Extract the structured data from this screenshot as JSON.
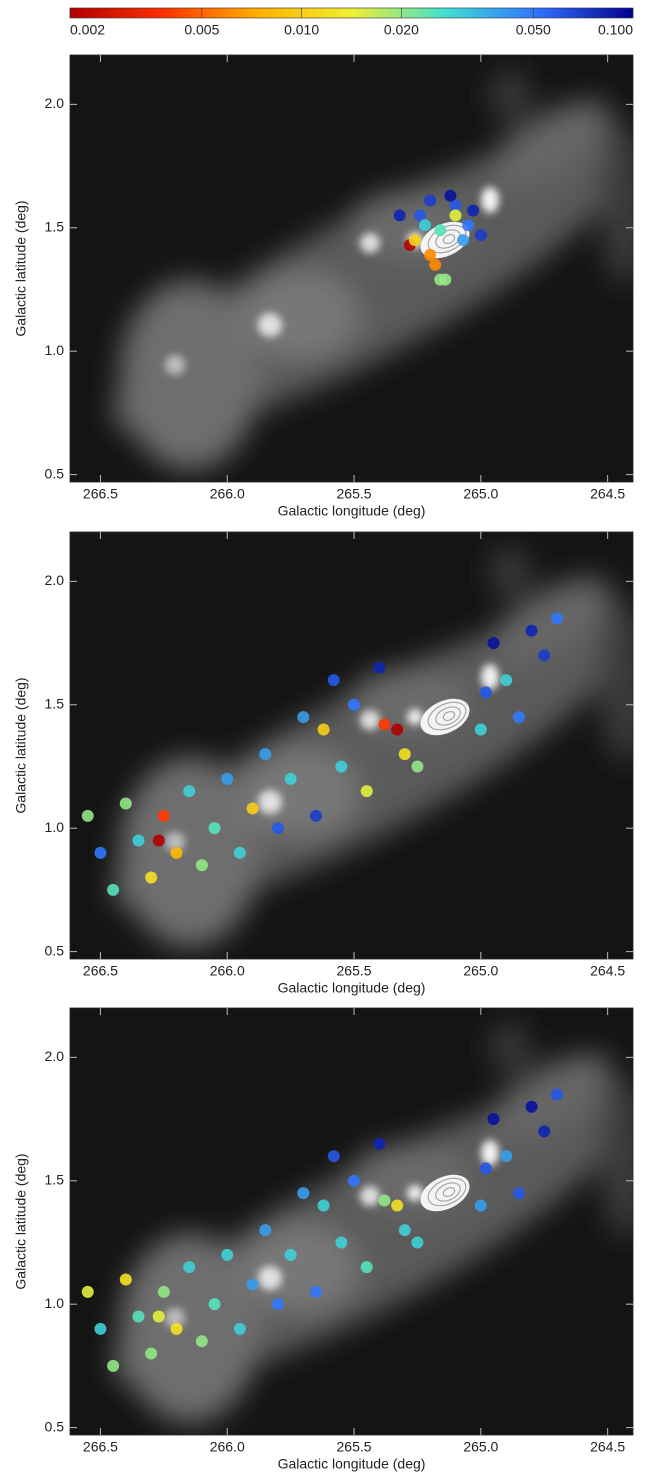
{
  "chart_data": [
    {
      "type": "colorbar",
      "log_scale": true,
      "xlim": [
        0.002,
        0.1
      ],
      "xticks": [
        0.002,
        0.005,
        {
          "value": 0.01,
          "label": "0.010"
        },
        {
          "value": 0.02,
          "label": "0.020"
        },
        {
          "value": 0.05,
          "label": "0.050"
        },
        {
          "value": 0.1,
          "label": "0.100"
        }
      ],
      "colormap": [
        "#b00000",
        "#ff3000",
        "#ffb000",
        "#f0f030",
        "#40e0d0",
        "#3070ff",
        "#00008c"
      ]
    },
    {
      "type": "scatter",
      "xlabel": "Galactic longitude (deg)",
      "ylabel": "Galactic latitude (deg)",
      "xlim": [
        266.62,
        264.4
      ],
      "ylim": [
        0.47,
        2.2
      ],
      "xticks": [
        266.5,
        {
          "value": 266.0,
          "label": "266.0"
        },
        265.5,
        {
          "value": 265.0,
          "label": "265.0"
        },
        264.5
      ],
      "yticks": [
        0.5,
        {
          "value": 1.0,
          "label": "1.0"
        },
        1.5,
        {
          "value": 2.0,
          "label": "2.0"
        }
      ],
      "series": [
        {
          "x": [
            265.32,
            265.2,
            265.1,
            265.05,
            265.0,
            265.16,
            265.1,
            265.28,
            265.26,
            265.2,
            265.18,
            265.16,
            265.14,
            265.24,
            265.03,
            265.07,
            265.22,
            265.12
          ],
          "y": [
            1.55,
            1.61,
            1.59,
            1.51,
            1.47,
            1.49,
            1.55,
            1.43,
            1.45,
            1.39,
            1.35,
            1.29,
            1.29,
            1.55,
            1.57,
            1.45,
            1.51,
            1.63
          ],
          "values": [
            0.08,
            0.07,
            0.06,
            0.05,
            0.07,
            0.025,
            0.015,
            0.002,
            0.01,
            0.006,
            0.006,
            0.02,
            0.02,
            0.06,
            0.08,
            0.04,
            0.03,
            0.09
          ]
        }
      ]
    },
    {
      "type": "scatter",
      "xlabel": "Galactic longitude (deg)",
      "ylabel": "Galactic latitude (deg)",
      "xlim": [
        266.62,
        264.4
      ],
      "ylim": [
        0.47,
        2.2
      ],
      "xticks": [
        266.5,
        {
          "value": 266.0,
          "label": "266.0"
        },
        265.5,
        {
          "value": 265.0,
          "label": "265.0"
        },
        264.5
      ],
      "yticks": [
        0.5,
        {
          "value": 1.0,
          "label": "1.0"
        },
        1.5,
        {
          "value": 2.0,
          "label": "2.0"
        }
      ],
      "series": [
        {
          "x": [
            266.55,
            266.5,
            266.45,
            266.4,
            266.35,
            266.3,
            266.27,
            266.25,
            266.2,
            266.15,
            266.1,
            266.05,
            266.0,
            265.95,
            265.9,
            265.85,
            265.8,
            265.75,
            265.7,
            265.65,
            265.62,
            265.58,
            265.55,
            265.5,
            265.45,
            265.4,
            265.38,
            265.33,
            265.3,
            265.25,
            265.0,
            264.98,
            264.95,
            264.9,
            264.85,
            264.8,
            264.75,
            264.7
          ],
          "y": [
            1.05,
            0.9,
            0.75,
            1.1,
            0.95,
            0.8,
            0.95,
            1.05,
            0.9,
            1.15,
            0.85,
            1.0,
            1.2,
            0.9,
            1.08,
            1.3,
            1.0,
            1.2,
            1.45,
            1.05,
            1.4,
            1.6,
            1.25,
            1.5,
            1.15,
            1.65,
            1.42,
            1.4,
            1.3,
            1.25,
            1.4,
            1.55,
            1.75,
            1.6,
            1.45,
            1.8,
            1.7,
            1.85
          ],
          "values": [
            0.02,
            0.05,
            0.025,
            0.02,
            0.03,
            0.012,
            0.002,
            0.004,
            0.008,
            0.03,
            0.02,
            0.025,
            0.04,
            0.03,
            0.01,
            0.04,
            0.06,
            0.03,
            0.04,
            0.07,
            0.01,
            0.06,
            0.03,
            0.05,
            0.015,
            0.08,
            0.004,
            0.002,
            0.012,
            0.02,
            0.03,
            0.06,
            0.09,
            0.03,
            0.05,
            0.08,
            0.07,
            0.05
          ]
        }
      ]
    },
    {
      "type": "scatter",
      "xlabel": "Galactic longitude (deg)",
      "ylabel": "Galactic latitude (deg)",
      "xlim": [
        266.62,
        264.4
      ],
      "ylim": [
        0.47,
        2.2
      ],
      "xticks": [
        266.5,
        {
          "value": 266.0,
          "label": "266.0"
        },
        265.5,
        {
          "value": 265.0,
          "label": "265.0"
        },
        264.5
      ],
      "yticks": [
        0.5,
        {
          "value": 1.0,
          "label": "1.0"
        },
        1.5,
        {
          "value": 2.0,
          "label": "2.0"
        }
      ],
      "series": [
        {
          "x": [
            266.55,
            266.5,
            266.45,
            266.4,
            266.35,
            266.3,
            266.27,
            266.25,
            266.2,
            266.15,
            266.1,
            266.05,
            266.0,
            265.95,
            265.9,
            265.85,
            265.8,
            265.75,
            265.7,
            265.65,
            265.62,
            265.58,
            265.55,
            265.5,
            265.45,
            265.4,
            265.38,
            265.33,
            265.3,
            265.25,
            265.0,
            264.98,
            264.95,
            264.9,
            264.85,
            264.8,
            264.75,
            264.7
          ],
          "y": [
            1.05,
            0.9,
            0.75,
            1.1,
            0.95,
            0.8,
            0.95,
            1.05,
            0.9,
            1.15,
            0.85,
            1.0,
            1.2,
            0.9,
            1.08,
            1.3,
            1.0,
            1.2,
            1.45,
            1.05,
            1.4,
            1.6,
            1.25,
            1.5,
            1.15,
            1.65,
            1.42,
            1.4,
            1.3,
            1.25,
            1.4,
            1.55,
            1.75,
            1.6,
            1.45,
            1.8,
            1.7,
            1.85
          ],
          "values": [
            0.015,
            0.03,
            0.02,
            0.012,
            0.025,
            0.02,
            0.015,
            0.02,
            0.012,
            0.03,
            0.02,
            0.025,
            0.03,
            0.03,
            0.04,
            0.04,
            0.05,
            0.03,
            0.04,
            0.05,
            0.03,
            0.06,
            0.03,
            0.05,
            0.025,
            0.08,
            0.02,
            0.012,
            0.03,
            0.03,
            0.04,
            0.06,
            0.09,
            0.04,
            0.06,
            0.09,
            0.08,
            0.06
          ]
        }
      ]
    }
  ]
}
